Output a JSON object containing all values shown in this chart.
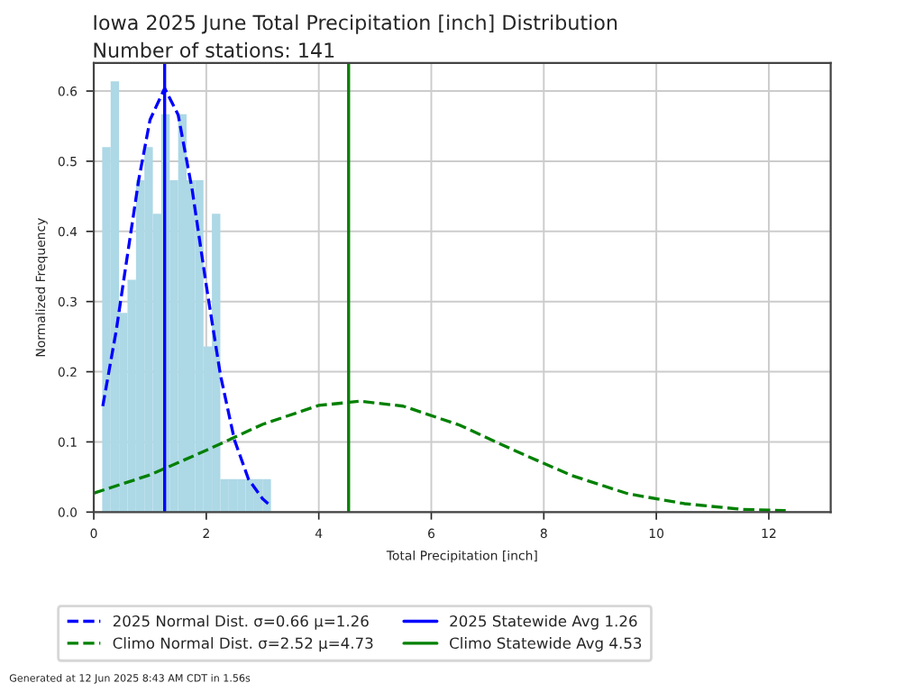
{
  "chart_data": {
    "type": "histogram",
    "title": "Iowa 2025 June Total Precipitation [inch] Distribution",
    "subtitle": "Number of stations: 141",
    "xlabel": "Total Precipitation [inch]",
    "ylabel": "Normalized Frequency",
    "bins": [
      0.15,
      0.3,
      0.45,
      0.6,
      0.75,
      0.9,
      1.05,
      1.2,
      1.35,
      1.5,
      1.65,
      1.8,
      1.95,
      2.1,
      2.25,
      2.4,
      2.55,
      2.7,
      2.85,
      3.0,
      3.15
    ],
    "values": [
      0.52,
      0.614,
      0.284,
      0.331,
      0.473,
      0.52,
      0.425,
      0.567,
      0.473,
      0.567,
      0.473,
      0.473,
      0.236,
      0.425,
      0.047,
      0.047,
      0.047,
      0.047,
      0.047,
      0.047
    ],
    "color": "#add8e6",
    "series": [
      {
        "type": "line",
        "name": "2025 Normal Dist. σ=0.66 μ=1.26",
        "color": "#0000ff",
        "line_style": "dashed",
        "x": [
          0.16,
          0.4,
          0.6,
          0.8,
          1.0,
          1.26,
          1.5,
          1.75,
          2.0,
          2.25,
          2.5,
          2.75,
          3.0,
          3.1
        ],
        "values": [
          0.151,
          0.259,
          0.367,
          0.474,
          0.559,
          0.604,
          0.566,
          0.459,
          0.323,
          0.196,
          0.103,
          0.047,
          0.019,
          0.012
        ]
      },
      {
        "type": "line",
        "name": "Climo Normal Dist. σ=2.52 μ=4.73",
        "color": "#008000",
        "line_style": "dashed",
        "x": [
          0,
          1,
          2,
          3,
          4,
          4.73,
          5.5,
          6.5,
          7.5,
          8.5,
          9.5,
          10.5,
          11.5,
          12.3
        ],
        "values": [
          0.027,
          0.053,
          0.088,
          0.125,
          0.152,
          0.158,
          0.151,
          0.124,
          0.087,
          0.052,
          0.026,
          0.012,
          0.004,
          0.002
        ]
      }
    ],
    "ref_lines": [
      {
        "axis": "x",
        "value": 1.26,
        "label": "2025 Statewide Avg 1.26",
        "color": "#0000ff",
        "line_style": "solid"
      },
      {
        "axis": "x",
        "value": 4.53,
        "label": "Climo Statewide Avg 4.53",
        "color": "#008000",
        "line_style": "solid"
      }
    ],
    "xlim": [
      0,
      13.1
    ],
    "ylim": [
      0,
      0.64
    ],
    "xticks": [
      0,
      2,
      4,
      6,
      8,
      10,
      12
    ],
    "yticks": [
      {
        "value": 0,
        "label": "0.0"
      },
      0.1,
      0.2,
      0.3,
      0.4,
      0.5,
      0.6
    ],
    "grid": true,
    "legend": "bottom",
    "annotations": [
      "Generated at 12 Jun 2025 8:43 AM CDT in 1.56s"
    ]
  }
}
